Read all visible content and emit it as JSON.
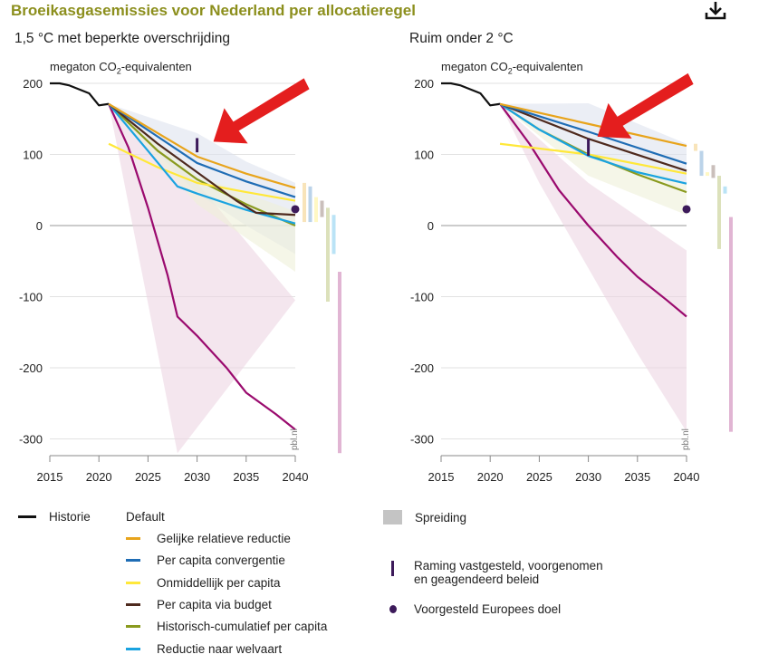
{
  "title": "Broeikasgasemissies voor Nederland per allocatieregel",
  "download_icon": "download-icon",
  "source_label": "pbl.nl",
  "colors": {
    "historie": "#111111",
    "gelijke": "#e8a41c",
    "convergentie": "#1f6db5",
    "onmiddellijk": "#ffe83a",
    "budget": "#4e2a1e",
    "historisch": "#8a9a1e",
    "welvaart": "#1aa3e0",
    "extra": "#9a0a6e",
    "raming": "#3c1a5a",
    "doel": "#3c1a5a",
    "spreiding": "#c4c4c4"
  },
  "chart_data": [
    {
      "type": "line",
      "title": "1,5 °C met beperkte overschrijding",
      "ylabel_prefix": "megaton CO",
      "ylabel_sub": "2",
      "ylabel_suffix": "-equivalenten",
      "xlim": [
        2015,
        2040
      ],
      "ylim": [
        -320,
        200
      ],
      "xticks": [
        "2015",
        "2020",
        "2025",
        "2030",
        "2035",
        "2040"
      ],
      "yticks": [
        "200",
        "100",
        "0",
        "-100",
        "-200",
        "-300"
      ],
      "ytick_values": [
        200,
        100,
        0,
        -100,
        -200,
        -300
      ],
      "series": [
        {
          "name": "Historie",
          "key": "historie",
          "points": [
            [
              2015,
              200
            ],
            [
              2016,
              200
            ],
            [
              2017,
              197
            ],
            [
              2019,
              186
            ],
            [
              2020,
              169
            ],
            [
              2021,
              171
            ]
          ]
        },
        {
          "name": "Gelijke relatieve reductie",
          "key": "gelijke",
          "points": [
            [
              2021,
              171
            ],
            [
              2030,
              97
            ],
            [
              2035,
              73
            ],
            [
              2040,
              53
            ]
          ]
        },
        {
          "name": "Per capita convergentie",
          "key": "convergentie",
          "points": [
            [
              2021,
              171
            ],
            [
              2026,
              125
            ],
            [
              2030,
              88
            ],
            [
              2035,
              62
            ],
            [
              2040,
              40
            ]
          ]
        },
        {
          "name": "Onmiddellijk per capita",
          "key": "onmiddellijk",
          "points": [
            [
              2021,
              115
            ],
            [
              2026,
              82
            ],
            [
              2030,
              60
            ],
            [
              2035,
              47
            ],
            [
              2040,
              35
            ]
          ]
        },
        {
          "name": "Per capita via budget",
          "key": "budget",
          "points": [
            [
              2021,
              171
            ],
            [
              2026,
              115
            ],
            [
              2030,
              75
            ],
            [
              2034,
              35
            ],
            [
              2036,
              18
            ],
            [
              2040,
              15
            ]
          ]
        },
        {
          "name": "Historisch-cumulatief per capita",
          "key": "historisch",
          "points": [
            [
              2021,
              171
            ],
            [
              2026,
              105
            ],
            [
              2030,
              65
            ],
            [
              2035,
              30
            ],
            [
              2040,
              0
            ]
          ]
        },
        {
          "name": "Reductie naar welvaart",
          "key": "welvaart",
          "points": [
            [
              2021,
              171
            ],
            [
              2025,
              105
            ],
            [
              2028,
              55
            ],
            [
              2030,
              45
            ],
            [
              2035,
              22
            ],
            [
              2040,
              3
            ]
          ]
        },
        {
          "name": "",
          "key": "extra",
          "points": [
            [
              2021,
              171
            ],
            [
              2023,
              110
            ],
            [
              2025,
              25
            ],
            [
              2027,
              -70
            ],
            [
              2028,
              -128
            ],
            [
              2030,
              -155
            ],
            [
              2033,
              -200
            ],
            [
              2035,
              -235
            ],
            [
              2038,
              -265
            ],
            [
              2040,
              -287
            ]
          ]
        }
      ],
      "bands": [
        {
          "key": "extra",
          "upper": [
            [
              2021,
              171
            ],
            [
              2030,
              60
            ],
            [
              2040,
              -105
            ]
          ],
          "lower": [
            [
              2021,
              171
            ],
            [
              2028,
              -320
            ]
          ]
        },
        {
          "key": "convergentie",
          "upper": [
            [
              2021,
              171
            ],
            [
              2030,
              130
            ],
            [
              2035,
              90
            ],
            [
              2040,
              60
            ]
          ],
          "lower": [
            [
              2021,
              171
            ],
            [
              2030,
              45
            ],
            [
              2035,
              0
            ],
            [
              2040,
              -40
            ]
          ]
        },
        {
          "key": "historisch",
          "upper": [
            [
              2021,
              171
            ],
            [
              2030,
              70
            ],
            [
              2040,
              20
            ]
          ],
          "lower": [
            [
              2021,
              171
            ],
            [
              2030,
              30
            ],
            [
              2040,
              -65
            ]
          ]
        }
      ],
      "ranges_2040": [
        {
          "key": "gelijke",
          "low": 5,
          "high": 60
        },
        {
          "key": "convergentie",
          "low": 5,
          "high": 55
        },
        {
          "key": "onmiddellijk",
          "low": 5,
          "high": 40
        },
        {
          "key": "budget",
          "low": 12,
          "high": 35
        },
        {
          "key": "historisch",
          "low": -107,
          "high": 25
        },
        {
          "key": "welvaart",
          "low": -40,
          "high": 15
        },
        {
          "key": "extra",
          "low": -320,
          "high": -65
        }
      ],
      "raming": {
        "x": 2030,
        "low": 103,
        "high": 123
      },
      "doel": {
        "x": 2040,
        "y": 23
      }
    },
    {
      "type": "line",
      "title": "Ruim onder 2 °C",
      "ylabel_prefix": "megaton CO",
      "ylabel_sub": "2",
      "ylabel_suffix": "-equivalenten",
      "xlim": [
        2015,
        2040
      ],
      "ylim": [
        -320,
        200
      ],
      "xticks": [
        "2015",
        "2020",
        "2025",
        "2030",
        "2035",
        "2040"
      ],
      "yticks": [
        "200",
        "100",
        "0",
        "-100",
        "-200",
        "-300"
      ],
      "ytick_values": [
        200,
        100,
        0,
        -100,
        -200,
        -300
      ],
      "series": [
        {
          "name": "Historie",
          "key": "historie",
          "points": [
            [
              2015,
              200
            ],
            [
              2016,
              200
            ],
            [
              2017,
              197
            ],
            [
              2019,
              186
            ],
            [
              2020,
              169
            ],
            [
              2021,
              171
            ]
          ]
        },
        {
          "name": "Gelijke relatieve reductie",
          "key": "gelijke",
          "points": [
            [
              2021,
              171
            ],
            [
              2030,
              143
            ],
            [
              2040,
              112
            ]
          ]
        },
        {
          "name": "Per capita convergentie",
          "key": "convergentie",
          "points": [
            [
              2021,
              171
            ],
            [
              2030,
              132
            ],
            [
              2040,
              87
            ]
          ]
        },
        {
          "name": "Onmiddellijk per capita",
          "key": "onmiddellijk",
          "points": [
            [
              2021,
              115
            ],
            [
              2030,
              100
            ],
            [
              2040,
              73
            ]
          ]
        },
        {
          "name": "Per capita via budget",
          "key": "budget",
          "points": [
            [
              2021,
              171
            ],
            [
              2030,
              122
            ],
            [
              2040,
              77
            ]
          ]
        },
        {
          "name": "Historisch-cumulatief per capita",
          "key": "historisch",
          "points": [
            [
              2021,
              171
            ],
            [
              2025,
              135
            ],
            [
              2030,
              100
            ],
            [
              2035,
              72
            ],
            [
              2040,
              47
            ]
          ]
        },
        {
          "name": "Reductie naar welvaart",
          "key": "welvaart",
          "points": [
            [
              2021,
              171
            ],
            [
              2025,
              135
            ],
            [
              2030,
              98
            ],
            [
              2035,
              75
            ],
            [
              2040,
              59
            ]
          ]
        },
        {
          "name": "",
          "key": "extra",
          "points": [
            [
              2021,
              171
            ],
            [
              2024,
              115
            ],
            [
              2027,
              50
            ],
            [
              2030,
              0
            ],
            [
              2033,
              -45
            ],
            [
              2035,
              -72
            ],
            [
              2038,
              -105
            ],
            [
              2040,
              -128
            ]
          ]
        }
      ],
      "bands": [
        {
          "key": "extra",
          "upper": [
            [
              2021,
              171
            ],
            [
              2030,
              60
            ],
            [
              2040,
              -35
            ]
          ],
          "lower": [
            [
              2021,
              171
            ],
            [
              2025,
              60
            ],
            [
              2030,
              -60
            ],
            [
              2035,
              -180
            ],
            [
              2040,
              -290
            ]
          ]
        },
        {
          "key": "convergentie",
          "upper": [
            [
              2021,
              171
            ],
            [
              2030,
              172
            ],
            [
              2040,
              115
            ]
          ],
          "lower": [
            [
              2021,
              171
            ],
            [
              2030,
              95
            ],
            [
              2040,
              60
            ]
          ]
        },
        {
          "key": "historisch",
          "upper": [
            [
              2021,
              171
            ],
            [
              2030,
              100
            ],
            [
              2040,
              60
            ]
          ],
          "lower": [
            [
              2021,
              171
            ],
            [
              2030,
              70
            ],
            [
              2040,
              15
            ]
          ]
        }
      ],
      "ranges_2040": [
        {
          "key": "gelijke",
          "low": 105,
          "high": 115
        },
        {
          "key": "convergentie",
          "low": 70,
          "high": 105
        },
        {
          "key": "onmiddellijk",
          "low": 70,
          "high": 75
        },
        {
          "key": "budget",
          "low": 67,
          "high": 85
        },
        {
          "key": "historisch",
          "low": -33,
          "high": 70
        },
        {
          "key": "welvaart",
          "low": 45,
          "high": 55
        },
        {
          "key": "extra",
          "low": -290,
          "high": 12
        }
      ],
      "raming": {
        "x": 2030,
        "low": 98,
        "high": 122
      },
      "doel": {
        "x": 2040,
        "y": 23
      }
    }
  ],
  "legend": {
    "historie": "Historie",
    "default_heading": "Default",
    "items": [
      {
        "key": "gelijke",
        "label": "Gelijke relatieve reductie"
      },
      {
        "key": "convergentie",
        "label": "Per capita convergentie"
      },
      {
        "key": "onmiddellijk",
        "label": "Onmiddellijk per capita"
      },
      {
        "key": "budget",
        "label": "Per capita via budget"
      },
      {
        "key": "historisch",
        "label": "Historisch-cumulatief per capita"
      },
      {
        "key": "welvaart",
        "label": "Reductie naar welvaart"
      }
    ],
    "spreiding": "Spreiding",
    "raming_line1": "Raming vastgesteld, voorgenomen",
    "raming_line2": "en geagendeerd beleid",
    "doel": "Voorgesteld Europees doel"
  }
}
